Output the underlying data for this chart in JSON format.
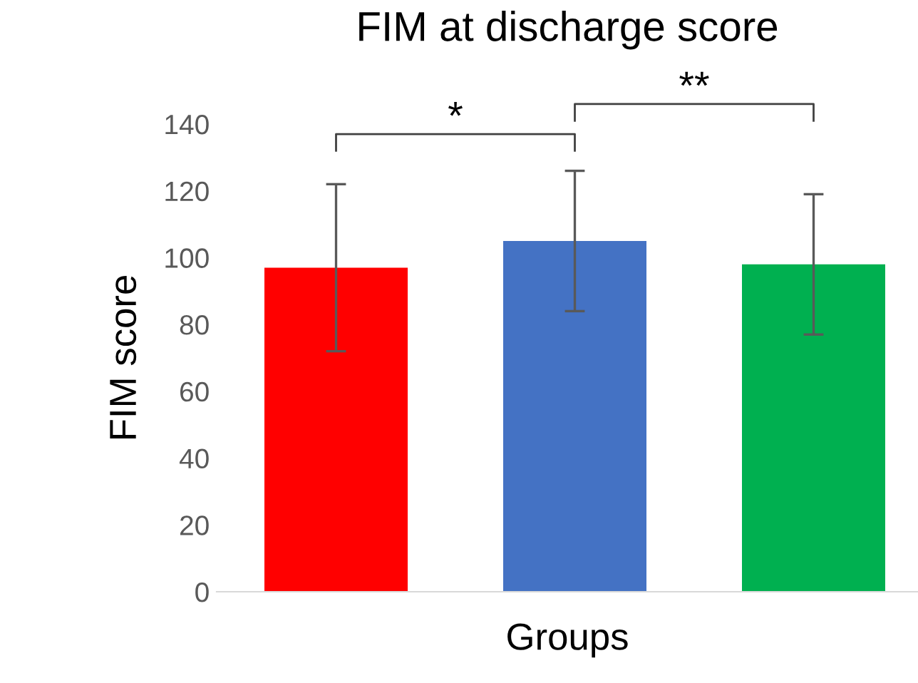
{
  "chart_data": {
    "type": "bar",
    "title": "FIM at discharge score",
    "xlabel": "Groups",
    "ylabel": "FIM score",
    "categories": [
      null,
      null,
      null
    ],
    "values": [
      97,
      105,
      98
    ],
    "colors": [
      "#ff0000",
      "#4472c4",
      "#00b050"
    ],
    "errors": [
      25,
      21,
      21
    ],
    "ylim": [
      0,
      140
    ],
    "yticks": [
      0,
      20,
      40,
      60,
      80,
      100,
      120,
      140
    ],
    "grid": false,
    "legend": false,
    "annotations": [
      "*",
      "**"
    ]
  }
}
